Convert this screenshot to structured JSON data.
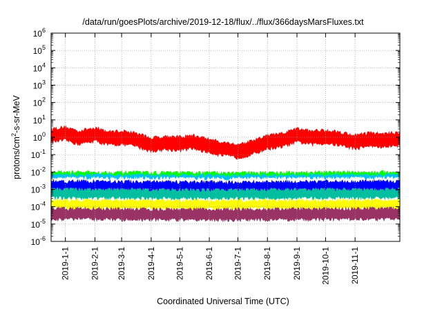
{
  "chart_data": {
    "type": "line",
    "title": "/data/run/goesPlots/archive/2019-12-18/flux/../flux/366daysMarsFluxes.txt",
    "xlabel": "Coordinated Universal Time (UTC)",
    "ylabel_main": "protons/cm",
    "ylabel_sup": "2",
    "ylabel_rest": "-s-sr-MeV",
    "x_scale": "time",
    "xlim": [
      "2018-12-17",
      "2019-12-18"
    ],
    "x_ticks": [
      {
        "date": "2019-01-01",
        "label": "2019-1-1"
      },
      {
        "date": "2019-02-01",
        "label": "2019-2-1"
      },
      {
        "date": "2019-03-01",
        "label": "2019-3-1"
      },
      {
        "date": "2019-04-01",
        "label": "2019-4-1"
      },
      {
        "date": "2019-05-01",
        "label": "2019-5-1"
      },
      {
        "date": "2019-06-01",
        "label": "2019-6-1"
      },
      {
        "date": "2019-07-01",
        "label": "2019-7-1"
      },
      {
        "date": "2019-08-01",
        "label": "2019-8-1"
      },
      {
        "date": "2019-09-01",
        "label": "2019-9-1"
      },
      {
        "date": "2019-10-01",
        "label": "2019-10-1"
      },
      {
        "date": "2019-11-01",
        "label": "2019-11-1"
      }
    ],
    "y_scale": "log",
    "ylim": [
      1e-06,
      1000000.0
    ],
    "y_ticks": [
      {
        "value": 1e-06,
        "base": "10",
        "exp": "-6"
      },
      {
        "value": 1e-05,
        "base": "10",
        "exp": "-5"
      },
      {
        "value": 0.0001,
        "base": "10",
        "exp": "-4"
      },
      {
        "value": 0.001,
        "base": "10",
        "exp": "-3"
      },
      {
        "value": 0.01,
        "base": "10",
        "exp": "-2"
      },
      {
        "value": 0.1,
        "base": "10",
        "exp": "-1"
      },
      {
        "value": 1.0,
        "base": "10",
        "exp": "0"
      },
      {
        "value": 10.0,
        "base": "10",
        "exp": "1"
      },
      {
        "value": 100.0,
        "base": "10",
        "exp": "2"
      },
      {
        "value": 1000.0,
        "base": "10",
        "exp": "3"
      },
      {
        "value": 10000.0,
        "base": "10",
        "exp": "4"
      },
      {
        "value": 100000.0,
        "base": "10",
        "exp": "5"
      },
      {
        "value": 1000000.0,
        "base": "10",
        "exp": "6"
      }
    ],
    "grid": true,
    "legend": "none",
    "series": [
      {
        "color": "#ff0000",
        "spread": [
          0.45,
          2.6
        ],
        "points": [
          [
            "2018-12-17",
            1.2
          ],
          [
            "2019-01-01",
            1.5
          ],
          [
            "2019-01-15",
            0.9
          ],
          [
            "2019-02-01",
            1.4
          ],
          [
            "2019-02-15",
            0.8
          ],
          [
            "2019-03-01",
            0.9
          ],
          [
            "2019-03-15",
            0.7
          ],
          [
            "2019-04-01",
            0.35
          ],
          [
            "2019-04-15",
            0.45
          ],
          [
            "2019-05-01",
            0.4
          ],
          [
            "2019-05-15",
            0.5
          ],
          [
            "2019-06-01",
            0.3
          ],
          [
            "2019-06-15",
            0.2
          ],
          [
            "2019-07-01",
            0.15
          ],
          [
            "2019-07-15",
            0.22
          ],
          [
            "2019-08-01",
            0.5
          ],
          [
            "2019-08-15",
            0.6
          ],
          [
            "2019-09-01",
            1.2
          ],
          [
            "2019-09-15",
            0.9
          ],
          [
            "2019-10-01",
            1.0
          ],
          [
            "2019-10-15",
            0.8
          ],
          [
            "2019-11-01",
            0.5
          ],
          [
            "2019-11-15",
            0.7
          ],
          [
            "2019-12-01",
            0.6
          ],
          [
            "2019-12-18",
            0.8
          ]
        ]
      },
      {
        "color": "#00ff00",
        "spread": [
          0.6,
          1.8
        ],
        "points": [
          [
            "2018-12-17",
            0.0055
          ],
          [
            "2019-06-01",
            0.005
          ],
          [
            "2019-12-18",
            0.0055
          ]
        ]
      },
      {
        "color": "#00bfff",
        "spread": [
          0.55,
          1.8
        ],
        "points": [
          [
            "2018-12-17",
            0.0038
          ],
          [
            "2019-06-01",
            0.0035
          ],
          [
            "2019-12-18",
            0.0038
          ]
        ]
      },
      {
        "color": "#ffffff",
        "spread": [
          0.6,
          1.6
        ],
        "points": [
          [
            "2018-12-17",
            0.0028
          ],
          [
            "2019-06-01",
            0.0026
          ],
          [
            "2019-12-18",
            0.0028
          ]
        ]
      },
      {
        "color": "#0000ff",
        "spread": [
          0.45,
          2.0
        ],
        "points": [
          [
            "2018-12-17",
            0.0015
          ],
          [
            "2019-06-01",
            0.0013
          ],
          [
            "2019-12-18",
            0.0015
          ]
        ]
      },
      {
        "color": "#00bfa0",
        "spread": [
          0.55,
          1.7
        ],
        "points": [
          [
            "2018-12-17",
            0.0006
          ],
          [
            "2019-06-01",
            0.00055
          ],
          [
            "2019-12-18",
            0.0006
          ]
        ]
      },
      {
        "color": "#ffff00",
        "spread": [
          0.6,
          1.7
        ],
        "points": [
          [
            "2018-12-17",
            0.00014
          ],
          [
            "2019-06-01",
            0.00013
          ],
          [
            "2019-12-18",
            0.00014
          ]
        ]
      },
      {
        "color": "#993366",
        "spread": [
          0.5,
          2.0
        ],
        "points": [
          [
            "2018-12-17",
            4e-05
          ],
          [
            "2019-06-01",
            3.5e-05
          ],
          [
            "2019-12-18",
            4e-05
          ]
        ]
      }
    ]
  }
}
